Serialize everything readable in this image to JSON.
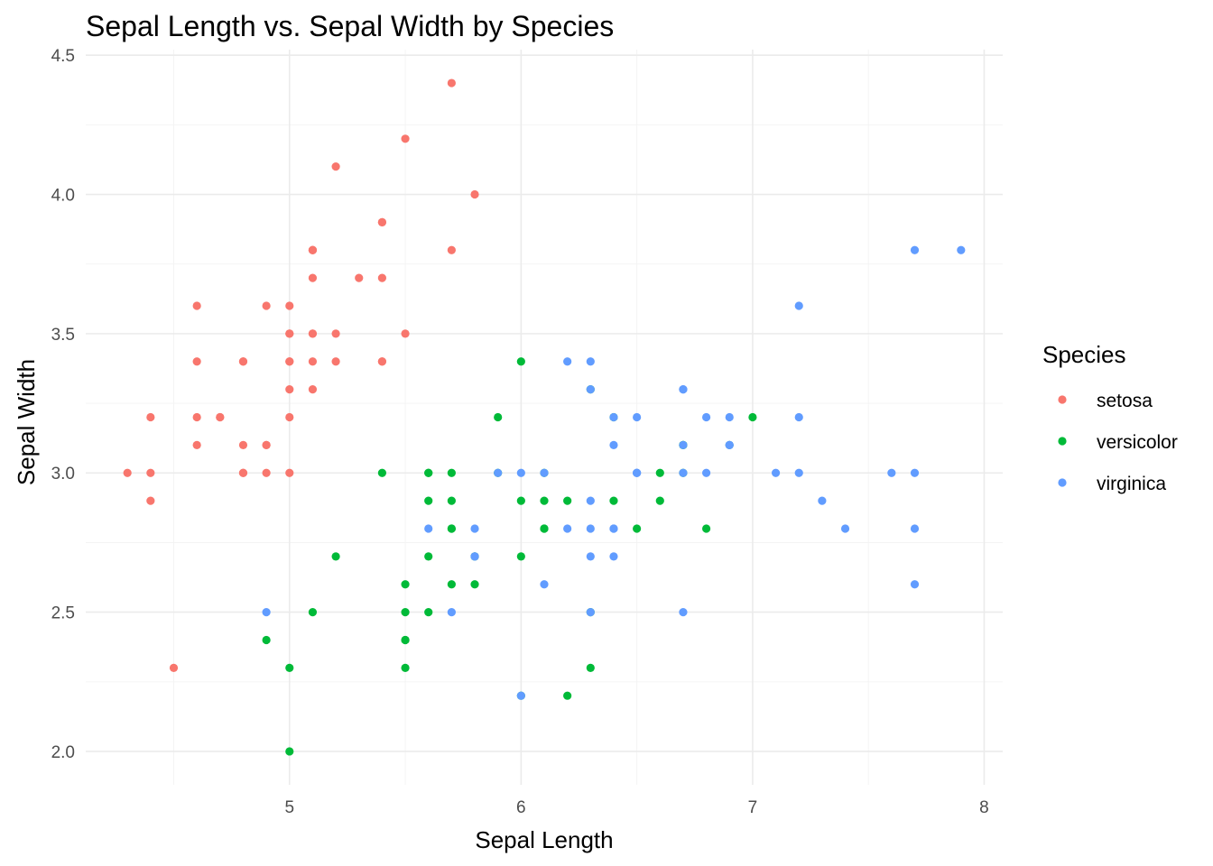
{
  "chart_data": {
    "type": "scatter",
    "title": "Sepal Length vs. Sepal Width by Species",
    "xlabel": "Sepal Length",
    "ylabel": "Sepal Width",
    "xlim": [
      4.12,
      8.08
    ],
    "ylim": [
      1.88,
      4.52
    ],
    "x_ticks": [
      5,
      6,
      7,
      8
    ],
    "x_tick_labels": [
      "5",
      "6",
      "7",
      "8"
    ],
    "y_ticks": [
      2.0,
      2.5,
      3.0,
      3.5,
      4.0,
      4.5
    ],
    "y_tick_labels": [
      "2.0",
      "2.5",
      "3.0",
      "3.5",
      "4.0",
      "4.5"
    ],
    "x_minor_ticks": [
      4.5,
      5.5,
      6.5,
      7.5
    ],
    "y_minor_ticks": [
      2.25,
      2.75,
      3.25,
      3.75,
      4.25
    ],
    "grid": true,
    "legend": {
      "title": "Species",
      "position": "right"
    },
    "series": [
      {
        "name": "setosa",
        "color": "#F8766D",
        "points": [
          [
            5.1,
            3.5
          ],
          [
            4.9,
            3.0
          ],
          [
            4.7,
            3.2
          ],
          [
            4.6,
            3.1
          ],
          [
            5.0,
            3.6
          ],
          [
            5.4,
            3.9
          ],
          [
            4.6,
            3.4
          ],
          [
            5.0,
            3.4
          ],
          [
            4.4,
            2.9
          ],
          [
            4.9,
            3.1
          ],
          [
            5.4,
            3.7
          ],
          [
            4.8,
            3.4
          ],
          [
            4.8,
            3.0
          ],
          [
            4.3,
            3.0
          ],
          [
            5.8,
            4.0
          ],
          [
            5.7,
            4.4
          ],
          [
            5.4,
            3.9
          ],
          [
            5.1,
            3.5
          ],
          [
            5.7,
            3.8
          ],
          [
            5.1,
            3.8
          ],
          [
            5.4,
            3.4
          ],
          [
            5.1,
            3.7
          ],
          [
            4.6,
            3.6
          ],
          [
            5.1,
            3.3
          ],
          [
            4.8,
            3.4
          ],
          [
            5.0,
            3.0
          ],
          [
            5.0,
            3.4
          ],
          [
            5.2,
            3.5
          ],
          [
            5.2,
            3.4
          ],
          [
            4.7,
            3.2
          ],
          [
            4.8,
            3.1
          ],
          [
            5.4,
            3.4
          ],
          [
            5.2,
            4.1
          ],
          [
            5.5,
            4.2
          ],
          [
            4.9,
            3.1
          ],
          [
            5.0,
            3.2
          ],
          [
            5.5,
            3.5
          ],
          [
            4.9,
            3.6
          ],
          [
            4.4,
            3.0
          ],
          [
            5.1,
            3.4
          ],
          [
            5.0,
            3.5
          ],
          [
            4.5,
            2.3
          ],
          [
            4.4,
            3.2
          ],
          [
            5.0,
            3.5
          ],
          [
            5.1,
            3.8
          ],
          [
            4.8,
            3.0
          ],
          [
            5.1,
            3.8
          ],
          [
            4.6,
            3.2
          ],
          [
            5.3,
            3.7
          ],
          [
            5.0,
            3.3
          ]
        ]
      },
      {
        "name": "versicolor",
        "color": "#00BA38",
        "points": [
          [
            7.0,
            3.2
          ],
          [
            6.4,
            3.2
          ],
          [
            6.9,
            3.1
          ],
          [
            5.5,
            2.3
          ],
          [
            6.5,
            2.8
          ],
          [
            5.7,
            2.8
          ],
          [
            6.3,
            3.3
          ],
          [
            4.9,
            2.4
          ],
          [
            6.6,
            2.9
          ],
          [
            5.2,
            2.7
          ],
          [
            5.0,
            2.0
          ],
          [
            5.9,
            3.0
          ],
          [
            6.0,
            2.2
          ],
          [
            6.1,
            2.9
          ],
          [
            5.6,
            2.9
          ],
          [
            6.7,
            3.1
          ],
          [
            5.6,
            3.0
          ],
          [
            5.8,
            2.7
          ],
          [
            6.2,
            2.2
          ],
          [
            5.6,
            2.5
          ],
          [
            5.9,
            3.2
          ],
          [
            6.1,
            2.8
          ],
          [
            6.3,
            2.5
          ],
          [
            6.1,
            2.8
          ],
          [
            6.4,
            2.9
          ],
          [
            6.6,
            3.0
          ],
          [
            6.8,
            2.8
          ],
          [
            6.7,
            3.0
          ],
          [
            6.0,
            2.9
          ],
          [
            5.7,
            2.6
          ],
          [
            5.5,
            2.4
          ],
          [
            5.5,
            2.4
          ],
          [
            5.8,
            2.7
          ],
          [
            6.0,
            2.7
          ],
          [
            5.4,
            3.0
          ],
          [
            6.0,
            3.4
          ],
          [
            6.7,
            3.1
          ],
          [
            6.3,
            2.3
          ],
          [
            5.6,
            3.0
          ],
          [
            5.5,
            2.5
          ],
          [
            5.5,
            2.6
          ],
          [
            6.1,
            3.0
          ],
          [
            5.8,
            2.6
          ],
          [
            5.0,
            2.3
          ],
          [
            5.6,
            2.7
          ],
          [
            5.7,
            3.0
          ],
          [
            5.7,
            2.9
          ],
          [
            6.2,
            2.9
          ],
          [
            5.1,
            2.5
          ],
          [
            5.7,
            2.8
          ]
        ]
      },
      {
        "name": "virginica",
        "color": "#619CFF",
        "points": [
          [
            6.3,
            3.3
          ],
          [
            5.8,
            2.7
          ],
          [
            7.1,
            3.0
          ],
          [
            6.3,
            2.9
          ],
          [
            6.5,
            3.0
          ],
          [
            7.6,
            3.0
          ],
          [
            4.9,
            2.5
          ],
          [
            7.3,
            2.9
          ],
          [
            6.7,
            2.5
          ],
          [
            7.2,
            3.6
          ],
          [
            6.5,
            3.2
          ],
          [
            6.4,
            2.7
          ],
          [
            6.8,
            3.0
          ],
          [
            5.7,
            2.5
          ],
          [
            5.8,
            2.8
          ],
          [
            6.4,
            3.2
          ],
          [
            6.5,
            3.0
          ],
          [
            7.7,
            3.8
          ],
          [
            7.7,
            2.6
          ],
          [
            6.0,
            2.2
          ],
          [
            6.9,
            3.2
          ],
          [
            5.6,
            2.8
          ],
          [
            7.7,
            2.8
          ],
          [
            6.3,
            2.7
          ],
          [
            6.7,
            3.3
          ],
          [
            7.2,
            3.2
          ],
          [
            6.2,
            2.8
          ],
          [
            6.1,
            3.0
          ],
          [
            6.4,
            2.8
          ],
          [
            7.2,
            3.0
          ],
          [
            7.4,
            2.8
          ],
          [
            7.9,
            3.8
          ],
          [
            6.4,
            2.8
          ],
          [
            6.3,
            2.8
          ],
          [
            6.1,
            2.6
          ],
          [
            7.7,
            3.0
          ],
          [
            6.3,
            3.4
          ],
          [
            6.4,
            3.1
          ],
          [
            6.0,
            3.0
          ],
          [
            6.9,
            3.1
          ],
          [
            6.7,
            3.1
          ],
          [
            6.9,
            3.1
          ],
          [
            5.8,
            2.7
          ],
          [
            6.8,
            3.2
          ],
          [
            6.7,
            3.3
          ],
          [
            6.7,
            3.0
          ],
          [
            6.3,
            2.5
          ],
          [
            6.5,
            3.0
          ],
          [
            6.2,
            3.4
          ],
          [
            5.9,
            3.0
          ]
        ]
      }
    ]
  }
}
